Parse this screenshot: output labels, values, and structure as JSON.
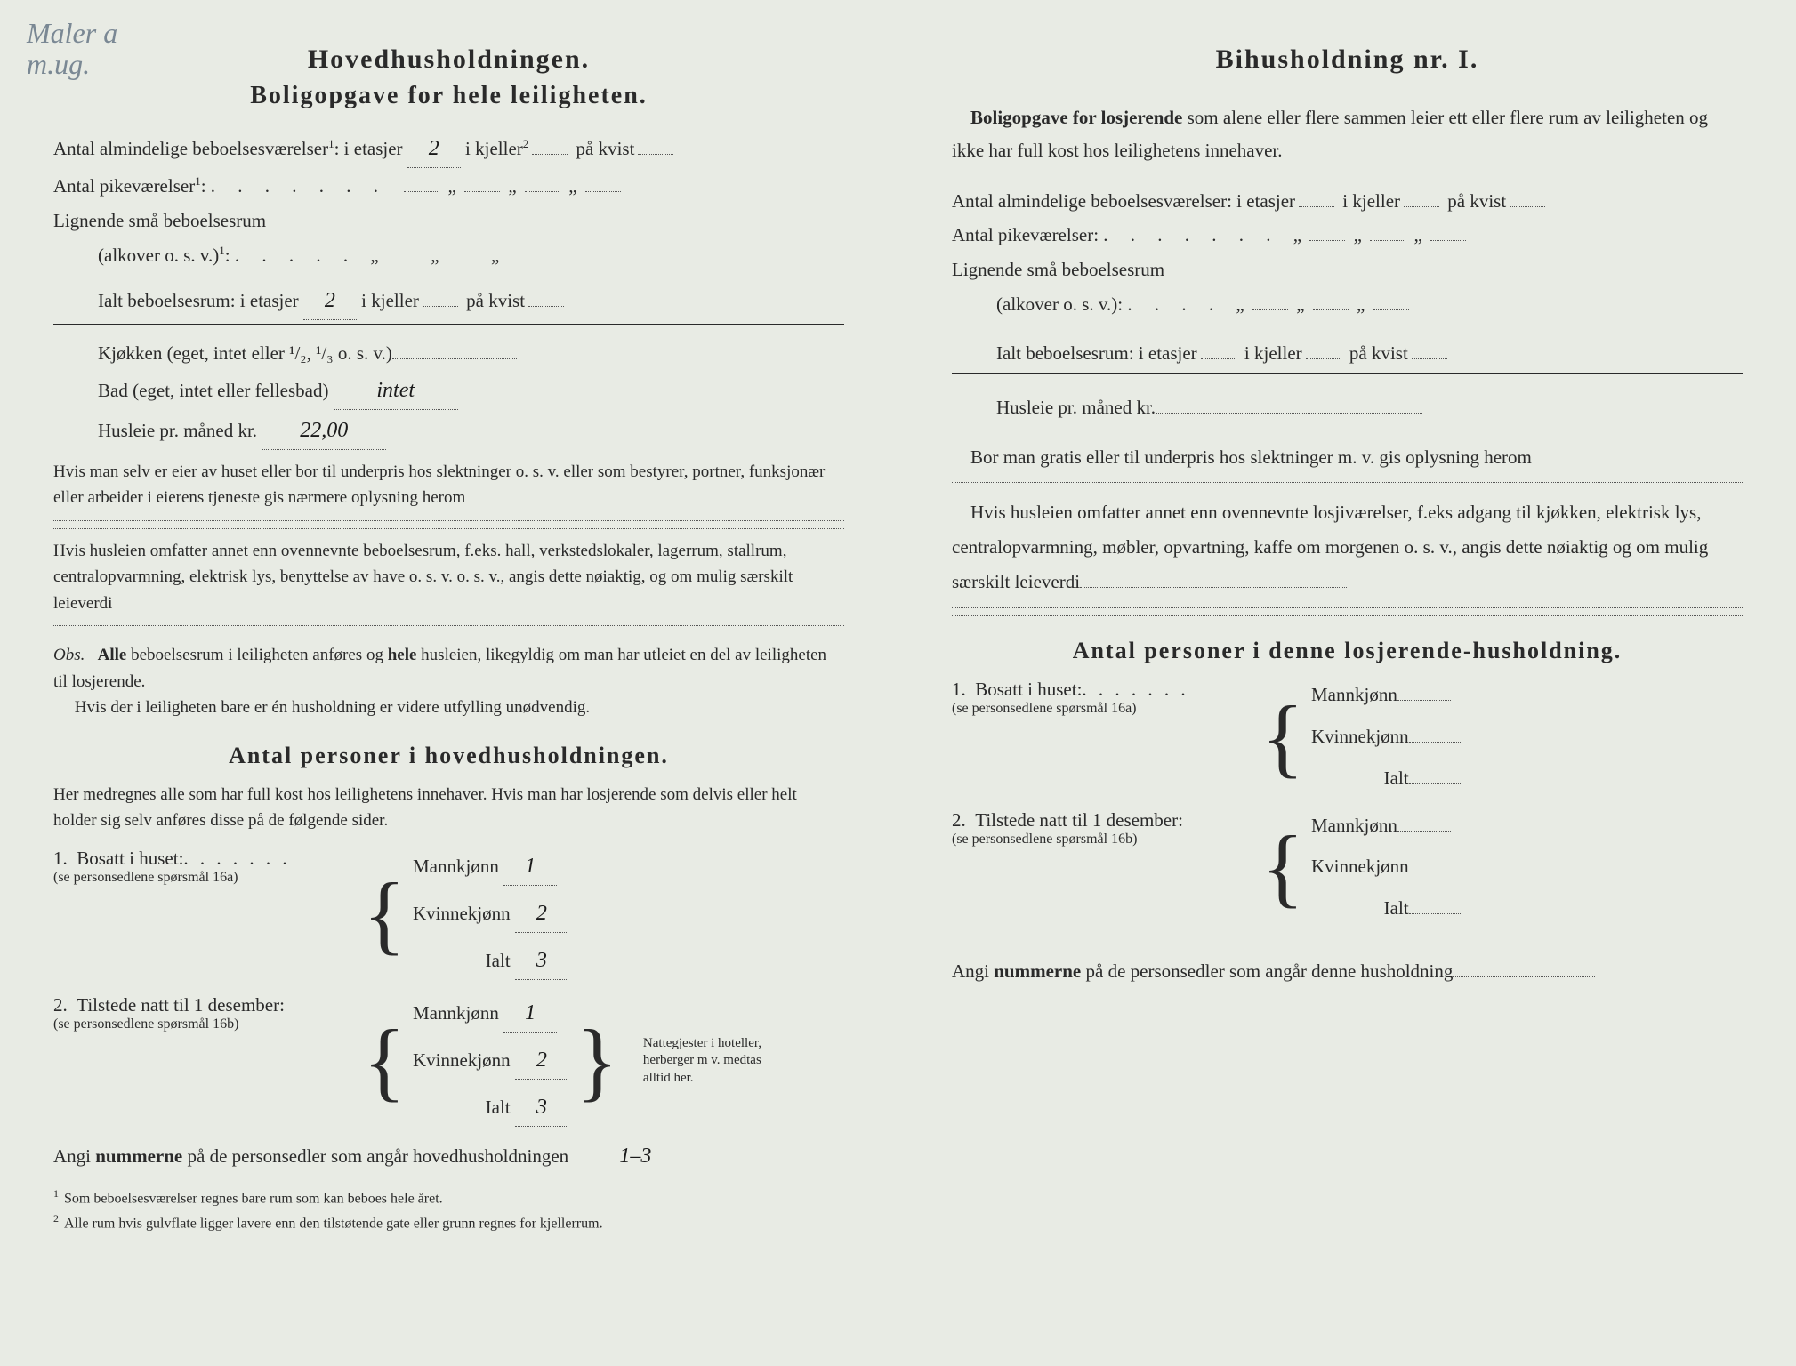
{
  "handwritten_corner": "Maler a\nm.ug.",
  "left": {
    "title1": "Hovedhusholdningen.",
    "title2": "Boligopgave for hele leiligheten.",
    "line1_pre": "Antal almindelige beboelsesværelser",
    "sup1": "1",
    "line1_etasjer_label": ": i etasjer",
    "line1_etasjer_val": "2",
    "line1_kjeller_label": "i kjeller",
    "sup2": "2",
    "line1_kvist_label": "på kvist",
    "line2_pre": "Antal pikeværelser",
    "line3_pre": "Lignende små beboelsesrum",
    "line3_sub": "(alkover o. s. v.)",
    "total_label": "Ialt beboelsesrum:  i etasjer",
    "total_etasjer_val": "2",
    "total_kjeller_label": "i kjeller",
    "total_kvist_label": "på kvist",
    "kjokken_label": "Kjøkken (eget, intet eller ¹/₂, ¹/₃ o. s. v.)",
    "kjokken_val": "",
    "bad_label": "Bad (eget, intet eller fellesbad)",
    "bad_val": "intet",
    "husleie_label": "Husleie pr. måned kr.",
    "husleie_val": "22,00",
    "note1": "Hvis man selv er eier av huset eller bor til underpris hos slektninger o. s. v. eller som bestyrer, portner, funksjonær eller arbeider i eierens tjeneste gis nærmere oplysning herom",
    "note2": "Hvis husleien omfatter annet enn ovennevnte beboelsesrum, f.eks. hall, verkstedslokaler, lagerrum, stallrum, centralopvarmning, elektrisk lys, benyttelse av have o. s. v. o. s. v., angis dette nøiaktig, og om mulig særskilt leieverdi",
    "obs_label": "Obs.",
    "obs_text1": "Alle beboelsesrum i leiligheten anføres og hele husleien, likegyldig om man har utleiet en del av leiligheten til losjerende.",
    "obs_text2": "Hvis der i leiligheten bare er én husholdning er videre utfylling unødvendig.",
    "section3_title": "Antal personer i hovedhusholdningen.",
    "section3_intro": "Her medregnes alle som har full kost hos leilighetens innehaver. Hvis man har losjerende som delvis eller helt holder sig selv anføres disse på de følgende sider.",
    "q1_num": "1.",
    "q1_label": "Bosatt i huset:",
    "q1_sub": "(se personsedlene spørsmål 16a)",
    "mann_label": "Mannkjønn",
    "kvinne_label": "Kvinnekjønn",
    "ialt_label": "Ialt",
    "q1_mann": "1",
    "q1_kvinne": "2",
    "q1_ialt": "3",
    "q2_num": "2.",
    "q2_label": "Tilstede natt til 1 desember:",
    "q2_sub": "(se personsedlene spørsmål 16b)",
    "q2_mann": "1",
    "q2_kvinne": "2",
    "q2_ialt": "3",
    "side_note": "Nattegjester i hoteller, herberger m v. medtas alltid her.",
    "footer_label": "Angi nummerne på de personsedler som angår hovedhusholdningen",
    "footer_val": "1–3",
    "fn1": "Som beboelsesværelser regnes bare rum som kan beboes hele året.",
    "fn2": "Alle rum hvis gulvflate ligger lavere enn den tilstøtende gate eller grunn regnes for kjellerrum."
  },
  "right": {
    "title": "Bihusholdning nr. I.",
    "intro_bold": "Boligopgave for losjerende",
    "intro_rest": " som alene eller flere sammen leier ett eller flere rum av leiligheten og ikke har full kost hos leilighetens innehaver.",
    "line1_pre": "Antal almindelige beboelsesværelser: i etasjer",
    "line1_kjeller": "i kjeller",
    "line1_kvist": "på kvist",
    "line2_pre": "Antal pikeværelser:",
    "line3_pre": "Lignende små beboelsesrum",
    "line3_sub": "(alkover o. s. v.):",
    "total_label": "Ialt beboelsesrum: i etasjer",
    "total_kjeller": "i kjeller",
    "total_kvist": "på kvist",
    "husleie_label": "Husleie pr. måned kr.",
    "note1": "Bor man gratis eller til underpris hos slektninger m. v. gis oplysning herom",
    "note2": "Hvis husleien omfatter annet enn ovennevnte losjiværelser, f.eks adgang til kjøkken, elektrisk lys, centralopvarmning, møbler, opvartning, kaffe om morgenen o. s. v., angis dette nøiaktig og om mulig særskilt leieverdi",
    "section_title": "Antal personer i denne losjerende-husholdning.",
    "q1_num": "1.",
    "q1_label": "Bosatt i huset:",
    "q1_sub": "(se personsedlene spørsmål 16a)",
    "mann_label": "Mannkjønn",
    "kvinne_label": "Kvinnekjønn",
    "ialt_label": "Ialt",
    "q2_num": "2.",
    "q2_label": "Tilstede natt til 1 desember:",
    "q2_sub": "(se personsedlene spørsmål 16b)",
    "footer_label": "Angi nummerne på de personsedler som angår denne husholdning"
  },
  "colors": {
    "paper": "#e8ebe4",
    "ink": "#2a2a2a",
    "handwriting": "#1a1a1a",
    "pencil": "#7a8894",
    "red": "#d4623a"
  }
}
